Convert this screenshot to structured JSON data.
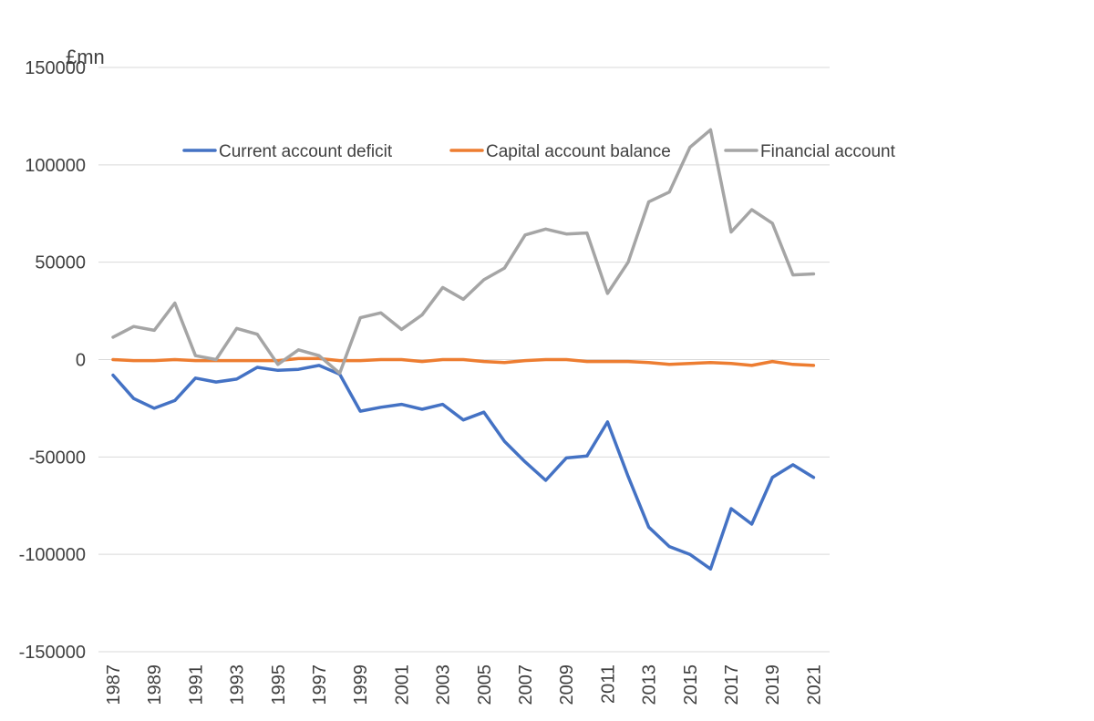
{
  "chart_data": {
    "type": "line",
    "title": "",
    "unit_label": "£mn",
    "xlabel": "",
    "ylabel": "",
    "ylim": [
      -150000,
      150000
    ],
    "yticks": [
      150000,
      100000,
      50000,
      0,
      -50000,
      -100000,
      -150000
    ],
    "ytick_labels": [
      "150000",
      "100000",
      "50000",
      "0",
      "-50000",
      "-100000",
      "-150000"
    ],
    "xtick_labels": [
      "1987",
      "1989",
      "1991",
      "1993",
      "1995",
      "1997",
      "1999",
      "2001",
      "2003",
      "2005",
      "2007",
      "2009",
      "2011",
      "2013",
      "2015",
      "2017",
      "2019",
      "2021"
    ],
    "grid": true,
    "legend": "top",
    "x": [
      1987,
      1988,
      1989,
      1990,
      1991,
      1992,
      1993,
      1994,
      1995,
      1996,
      1997,
      1998,
      1999,
      2000,
      2001,
      2002,
      2003,
      2004,
      2005,
      2006,
      2007,
      2008,
      2009,
      2010,
      2011,
      2012,
      2013,
      2014,
      2015,
      2016,
      2017,
      2018,
      2019,
      2020,
      2021
    ],
    "series": [
      {
        "name": "Current account deficit",
        "color": "#4472C4",
        "values": [
          -8000,
          -20000,
          -25000,
          -21000,
          -9500,
          -11500,
          -10000,
          -4000,
          -5500,
          -5000,
          -3000,
          -7500,
          -26500,
          -24500,
          -23000,
          -25500,
          -23000,
          -31000,
          -27000,
          -42000,
          -52500,
          -62000,
          -50500,
          -49500,
          -32000,
          -60000,
          -86000,
          -96000,
          -100000,
          -107500,
          -76500,
          -84500,
          -60500,
          -54000,
          -60500
        ]
      },
      {
        "name": "Capital account balance",
        "color": "#ED7D31",
        "values": [
          0,
          -500,
          -500,
          0,
          -500,
          -500,
          -500,
          -500,
          -500,
          500,
          500,
          -500,
          -500,
          0,
          0,
          -1000,
          0,
          0,
          -1000,
          -1500,
          -500,
          0,
          0,
          -1000,
          -1000,
          -1000,
          -1500,
          -2500,
          -2000,
          -1500,
          -2000,
          -3000,
          -1000,
          -2500,
          -3000
        ]
      },
      {
        "name": "Financial account",
        "color": "#A5A5A5",
        "values": [
          11500,
          17000,
          15000,
          29000,
          2000,
          0,
          16000,
          13000,
          -2500,
          5000,
          2000,
          -7000,
          21500,
          24000,
          15500,
          23000,
          37000,
          31000,
          41000,
          47000,
          64000,
          67000,
          64500,
          65000,
          34000,
          50000,
          81000,
          86000,
          109000,
          118000,
          65500,
          77000,
          70000,
          43500,
          44000
        ]
      }
    ]
  }
}
